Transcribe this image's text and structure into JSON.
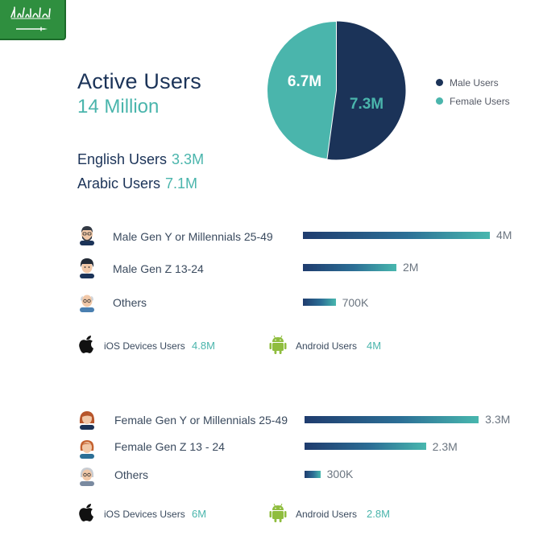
{
  "header": {
    "title": "Active Users",
    "total": "14 Million"
  },
  "languages": [
    {
      "label": "English Users",
      "value": "3.3M"
    },
    {
      "label": "Arabic Users",
      "value": "7.1M"
    }
  ],
  "colors": {
    "male": "#1b3358",
    "female": "#4ab5ac",
    "text_accent": "#4ab5ac",
    "flag_green": "#2f8f3f"
  },
  "icons": {
    "flag": "saudi-flag-icon",
    "ios": "apple-icon",
    "android": "android-icon"
  },
  "chart_data": [
    {
      "type": "pie",
      "categories": [
        "Male Users",
        "Female Users"
      ],
      "values": [
        7.3,
        6.7
      ],
      "labels": [
        "7.3M",
        "6.7M"
      ],
      "legend_position": "right"
    },
    {
      "type": "bar",
      "group": "male",
      "categories": [
        "Male Gen Y or Millennials 25-49",
        "Male Gen Z 13-24",
        "Others"
      ],
      "values": [
        4000000,
        2000000,
        700000
      ],
      "labels": [
        "4M",
        "2M",
        "700K"
      ]
    },
    {
      "type": "bar",
      "group": "female",
      "categories": [
        "Female Gen Y or Millennials 25-49",
        "Female Gen Z 13 - 24",
        "Others"
      ],
      "values": [
        3300000,
        2300000,
        300000
      ],
      "labels": [
        "3.3M",
        "2.3M",
        "300K"
      ]
    }
  ],
  "devices": {
    "male": {
      "ios_label": "iOS Devices Users",
      "ios_value": "4.8M",
      "android_label": "Android Users",
      "android_value": "4M"
    },
    "female": {
      "ios_label": "iOS Devices Users",
      "ios_value": "6M",
      "android_label": "Android Users",
      "android_value": "2.8M"
    }
  }
}
